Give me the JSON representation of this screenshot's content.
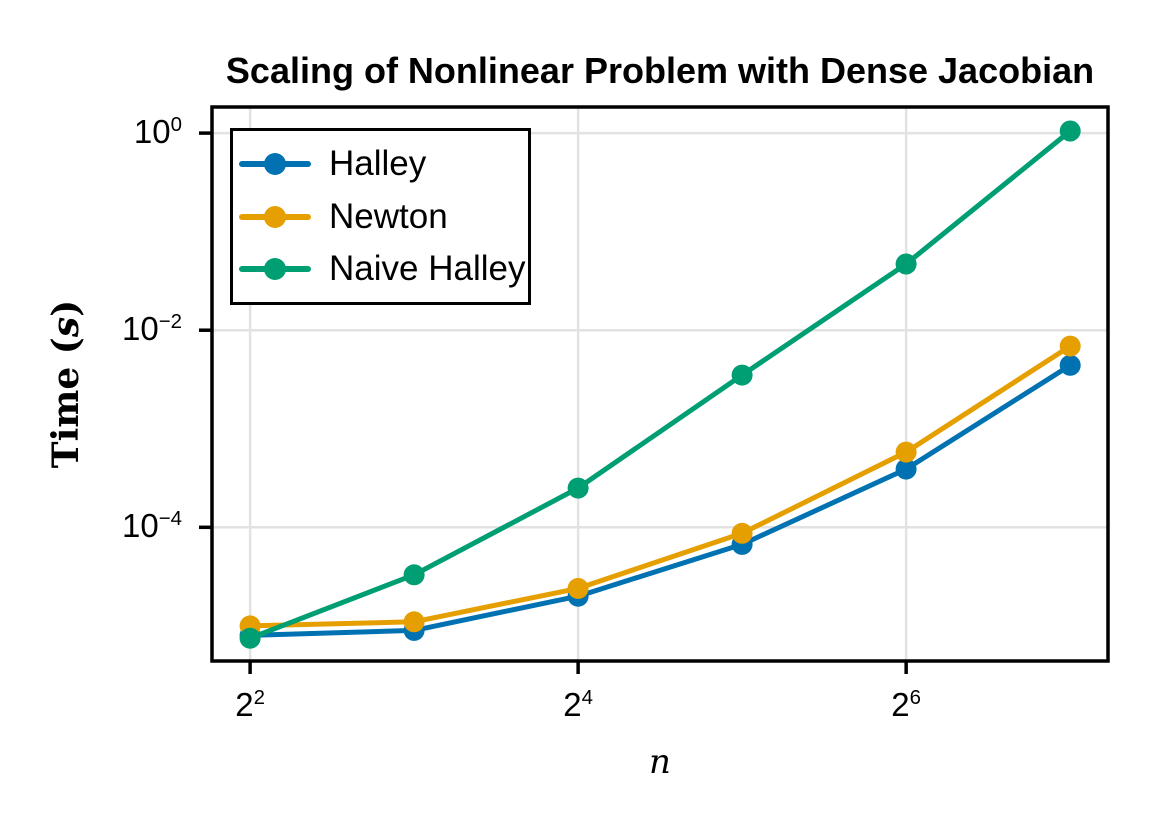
{
  "figure": {
    "background": "#ffffff",
    "ylabel_parts": {
      "prefix": "Time (",
      "s": "s",
      "suffix": ")"
    }
  },
  "chart_data": {
    "type": "line",
    "title": "Scaling of Nonlinear Problem with Dense Jacobian",
    "xlabel": "n",
    "ylabel": "Time (s)",
    "x_scale": "log2",
    "y_scale": "log10",
    "grid": true,
    "grid_color": "#e2e2e2",
    "axis_color": "#000000",
    "legend_position": "top-left",
    "x": [
      4,
      8,
      16,
      32,
      64,
      128
    ],
    "series": [
      {
        "name": "Halley",
        "color": "#0072B2",
        "values": [
          8e-06,
          9e-06,
          2e-05,
          6.7e-05,
          0.00039,
          0.0044
        ]
      },
      {
        "name": "Newton",
        "color": "#E69F00",
        "values": [
          1e-05,
          1.1e-05,
          2.4e-05,
          8.7e-05,
          0.00058,
          0.0069
        ]
      },
      {
        "name": "Naive Halley",
        "color": "#009E73",
        "values": [
          7.5e-06,
          3.3e-05,
          0.00025,
          0.0035,
          0.047,
          1.05
        ]
      }
    ],
    "x_ticks": [
      {
        "base": "2",
        "exp": "2",
        "value": 4
      },
      {
        "base": "2",
        "exp": "4",
        "value": 16
      },
      {
        "base": "2",
        "exp": "6",
        "value": 64
      }
    ],
    "y_ticks": [
      {
        "base": "10",
        "exp": "0",
        "value": 1
      },
      {
        "base": "10",
        "exp": "−2",
        "value": 0.01
      },
      {
        "base": "10",
        "exp": "−4",
        "value": 0.0001
      }
    ],
    "xlim": [
      3.405,
      150.2
    ],
    "ylim": [
      4.4e-06,
      1.84
    ]
  }
}
